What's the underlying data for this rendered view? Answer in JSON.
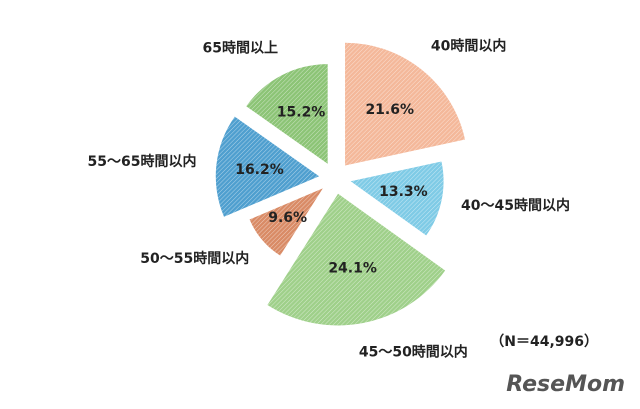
{
  "chart_data": {
    "type": "pie",
    "categories": [
      "40時間以内",
      "40～45時間以内",
      "45～50時間以内",
      "50～55時間以内",
      "55～65時間以内",
      "65時間以上"
    ],
    "values": [
      21.6,
      13.3,
      24.1,
      9.6,
      16.2,
      15.2
    ],
    "value_labels": [
      "21.6%",
      "13.3%",
      "24.1%",
      "9.6%",
      "16.2%",
      "15.2%"
    ],
    "colors": [
      "#f4b89a",
      "#7fcbe6",
      "#9fd08a",
      "#d98b66",
      "#4f9fcf",
      "#8cc476"
    ],
    "note": "（N＝44,996）",
    "watermark": "ReseMom"
  }
}
